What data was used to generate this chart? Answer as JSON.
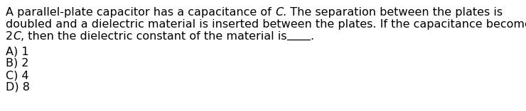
{
  "background_color": "#ffffff",
  "text_color": "#000000",
  "line1_parts": [
    {
      "text": "A parallel-plate capacitor has a capacitance of ",
      "italic": false
    },
    {
      "text": "C",
      "italic": true
    },
    {
      "text": ". The separation between the plates is",
      "italic": false
    }
  ],
  "line2": "doubled and a dielectric material is inserted between the plates. If the capacitance becomes",
  "line3_parts": [
    {
      "text": "2",
      "italic": false
    },
    {
      "text": "C",
      "italic": true
    },
    {
      "text": ", then the dielectric constant of the material is",
      "italic": false
    }
  ],
  "line3_blank_label": "____",
  "line3_period": ".",
  "choices": [
    "A) 1",
    "B) 2",
    "C) 4",
    "D) 8"
  ],
  "font_size": 11.5,
  "font_family": "DejaVu Sans"
}
